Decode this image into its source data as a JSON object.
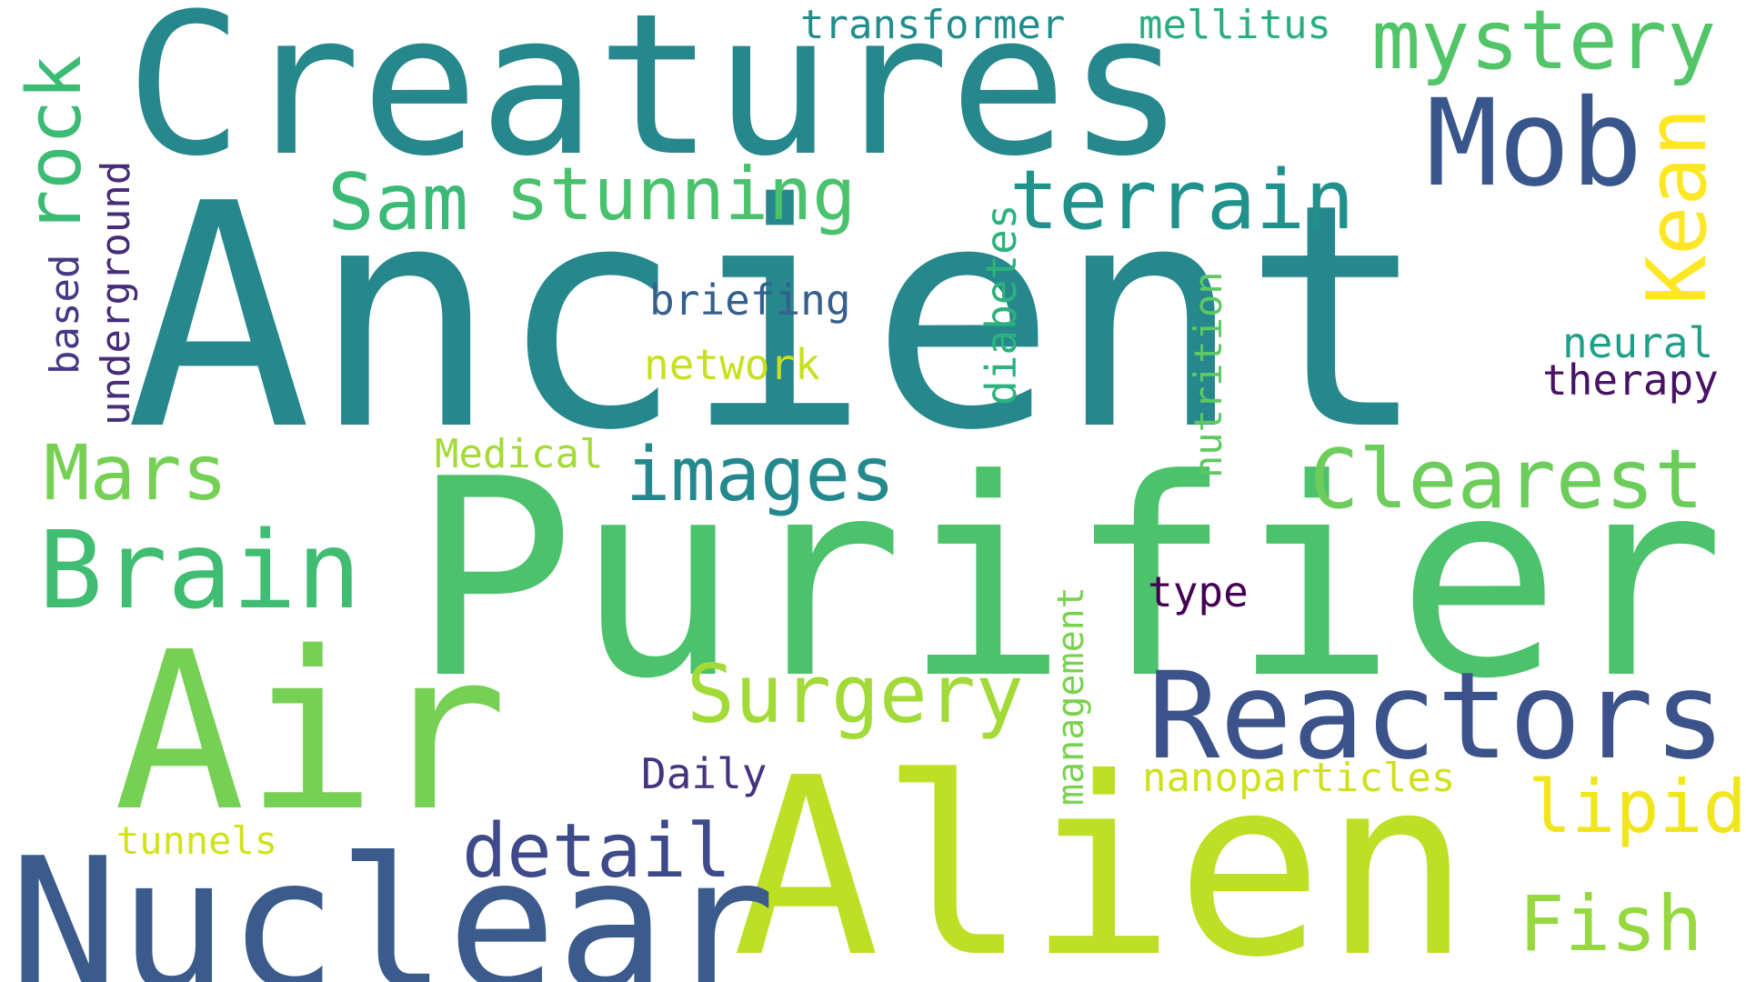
{
  "cloud": {
    "words": [
      {
        "text": "Ancient",
        "color": "#26878d"
      },
      {
        "text": "Purifier",
        "color": "#4cc26c"
      },
      {
        "text": "Creatures",
        "color": "#26878d"
      },
      {
        "text": "Alien",
        "color": "#bddf26"
      },
      {
        "text": "Air",
        "color": "#76d054"
      },
      {
        "text": "Nuclear",
        "color": "#3b5b8c"
      },
      {
        "text": "Reactors",
        "color": "#3b528b"
      },
      {
        "text": "Mob",
        "color": "#39568c"
      },
      {
        "text": "Brain",
        "color": "#40bd72"
      },
      {
        "text": "Clearest",
        "color": "#6ccd5a"
      },
      {
        "text": "mystery",
        "color": "#52c569"
      },
      {
        "text": "terrain",
        "color": "#21918c"
      },
      {
        "text": "Surgery",
        "color": "#a2da37"
      },
      {
        "text": "Kean",
        "color": "#fde725"
      },
      {
        "text": "stunning",
        "color": "#4ac16d"
      },
      {
        "text": "Sam",
        "color": "#3aba76"
      },
      {
        "text": "Mars",
        "color": "#75d054"
      },
      {
        "text": "images",
        "color": "#23898e"
      },
      {
        "text": "rock",
        "color": "#3cbb75"
      },
      {
        "text": "detail",
        "color": "#3e4a89"
      },
      {
        "text": "lipid",
        "color": "#f1e51d"
      },
      {
        "text": "Fish",
        "color": "#95d840"
      },
      {
        "text": "briefing",
        "color": "#355f8d"
      },
      {
        "text": "network",
        "color": "#c8e020"
      },
      {
        "text": "neural",
        "color": "#1f9f88"
      },
      {
        "text": "therapy",
        "color": "#471365"
      },
      {
        "text": "underground",
        "color": "#472c7a"
      },
      {
        "text": "based",
        "color": "#443983"
      },
      {
        "text": "diabetes",
        "color": "#2db27d"
      },
      {
        "text": "nutrition",
        "color": "#5ec962"
      },
      {
        "text": "management",
        "color": "#7ad151"
      },
      {
        "text": "type",
        "color": "#440154"
      },
      {
        "text": "Daily",
        "color": "#46337e"
      },
      {
        "text": "nanoparticles",
        "color": "#d0e11c"
      },
      {
        "text": "Medical",
        "color": "#a5db36"
      },
      {
        "text": "tunnels",
        "color": "#d2e21b"
      },
      {
        "text": "transformer",
        "color": "#228d8d"
      },
      {
        "text": "mellitus",
        "color": "#28ae80"
      }
    ]
  }
}
